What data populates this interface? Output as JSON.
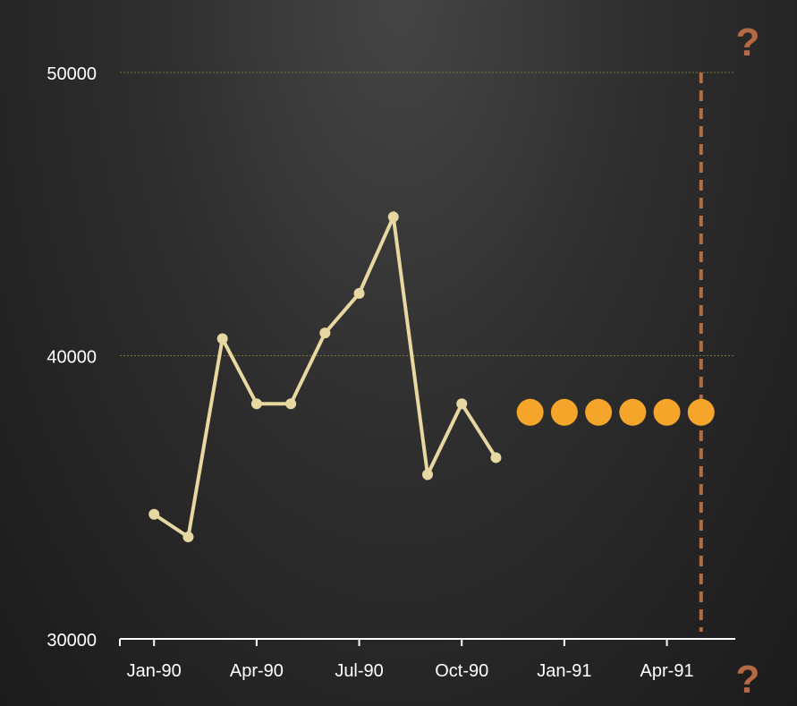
{
  "chart_data": {
    "type": "line",
    "y_ticks": [
      {
        "value": 50000,
        "label": "50000"
      },
      {
        "value": 40000,
        "label": "40000"
      },
      {
        "value": 30000,
        "label": "30000"
      }
    ],
    "x_ticks": [
      {
        "value": "1990-01",
        "label": "Jan-90"
      },
      {
        "value": "1990-04",
        "label": "Apr-90"
      },
      {
        "value": "1990-07",
        "label": "Jul-90"
      },
      {
        "value": "1990-10",
        "label": "Oct-90"
      },
      {
        "value": "1991-01",
        "label": "Jan-91"
      },
      {
        "value": "1991-04",
        "label": "Apr-91"
      }
    ],
    "ylim": [
      30000,
      50000
    ],
    "xlim": [
      "1989-12",
      "1991-06"
    ],
    "grid": true,
    "series": [
      {
        "style": "line-with-markers",
        "color": "#e6d8a0",
        "x": [
          "1990-01",
          "1990-02",
          "1990-03",
          "1990-04",
          "1990-05",
          "1990-06",
          "1990-07",
          "1990-08",
          "1990-09",
          "1990-10",
          "1990-11"
        ],
        "values": [
          34400,
          33600,
          40600,
          38300,
          38300,
          40800,
          42200,
          44900,
          35800,
          38300,
          36400
        ]
      },
      {
        "style": "markers",
        "color": "#f4a52a",
        "x": [
          "1990-12",
          "1991-01",
          "1991-02",
          "1991-03",
          "1991-04",
          "1991-05"
        ],
        "values": [
          38000,
          38000,
          38000,
          38000,
          38000,
          38000
        ]
      }
    ],
    "annotations": [
      {
        "text": "?",
        "position": "top-right",
        "color": "#b36a45"
      },
      {
        "text": "?",
        "position": "bottom-right",
        "color": "#b36a45"
      }
    ],
    "marker_line": {
      "x": "1991-05",
      "style": "dashed",
      "color": "#b36a45"
    }
  }
}
